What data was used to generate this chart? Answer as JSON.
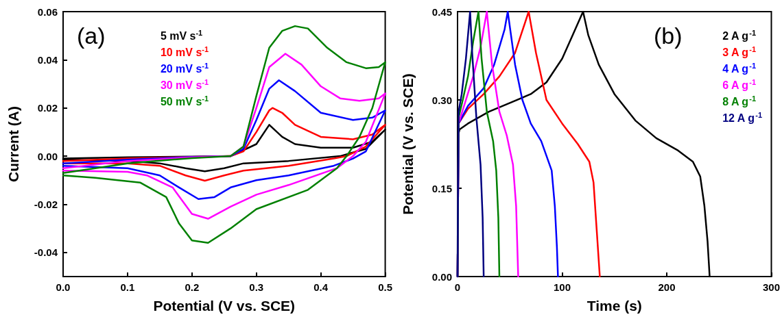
{
  "chart_data": [
    {
      "type": "line",
      "xlabel": "Potential (V vs. SCE)",
      "ylabel": "Current (A)",
      "annotations": [
        "(a)"
      ],
      "xlim": [
        0,
        0.5
      ],
      "xticks": [
        {
          "value": 0,
          "label": "0.0"
        },
        0.1,
        0.2,
        0.3,
        0.4,
        0.5
      ],
      "ylim": [
        -0.05,
        0.06
      ],
      "yticks": [
        {
          "value": -0.04,
          "label": "-0.04"
        },
        {
          "value": -0.02,
          "label": "-0.02"
        },
        {
          "value": 0,
          "label": "0.00"
        },
        {
          "value": 0.02,
          "label": "0.02"
        },
        {
          "value": 0.04,
          "label": "0.04"
        },
        {
          "value": 0.06,
          "label": "0.06"
        }
      ],
      "grid": false,
      "legend": "top left",
      "marker": "none",
      "line_style": "solid",
      "series": [
        {
          "name": "5 mV s$^{-1}$",
          "color": "#000000",
          "x": [
            0,
            0.1,
            0.2,
            0.26,
            0.3,
            0.32,
            0.34,
            0.36,
            0.4,
            0.45,
            0.48,
            0.5,
            0.47,
            0.43,
            0.35,
            0.28,
            0.25,
            0.22,
            0.19,
            0.15,
            0.1,
            0
          ],
          "values": [
            -0.001,
            -0.0005,
            -0.0002,
            0,
            0.005,
            0.013,
            0.008,
            0.005,
            0.0035,
            0.0035,
            0.006,
            0.011,
            0.003,
            0,
            -0.002,
            -0.003,
            -0.005,
            -0.0063,
            -0.005,
            -0.003,
            -0.002,
            -0.0015
          ]
        },
        {
          "name": "10 mV s$^{-1}$",
          "color": "#ff0000",
          "x": [
            0,
            0.1,
            0.2,
            0.26,
            0.28,
            0.3,
            0.32,
            0.325,
            0.34,
            0.36,
            0.4,
            0.45,
            0.48,
            0.5,
            0.47,
            0.44,
            0.42,
            0.35,
            0.28,
            0.25,
            0.22,
            0.19,
            0.15,
            0.1,
            0
          ],
          "values": [
            -0.002,
            -0.001,
            -0.0003,
            0,
            0.002,
            0.01,
            0.019,
            0.02,
            0.018,
            0.013,
            0.008,
            0.007,
            0.009,
            0.013,
            0.004,
            0,
            -0.001,
            -0.004,
            -0.006,
            -0.008,
            -0.0102,
            -0.008,
            -0.004,
            -0.003,
            -0.003
          ]
        },
        {
          "name": "20 mV s$^{-1}$",
          "color": "#0000ff",
          "x": [
            0,
            0.1,
            0.2,
            0.26,
            0.28,
            0.3,
            0.32,
            0.335,
            0.36,
            0.4,
            0.45,
            0.48,
            0.5,
            0.47,
            0.45,
            0.42,
            0.35,
            0.3,
            0.26,
            0.235,
            0.21,
            0.18,
            0.15,
            0.1,
            0
          ],
          "values": [
            -0.003,
            -0.0015,
            -0.0003,
            0,
            0.003,
            0.015,
            0.028,
            0.0315,
            0.027,
            0.018,
            0.015,
            0.016,
            0.019,
            0.002,
            -0.001,
            -0.004,
            -0.008,
            -0.01,
            -0.013,
            -0.017,
            -0.0178,
            -0.013,
            -0.008,
            -0.005,
            -0.004
          ]
        },
        {
          "name": "30 mV s$^{-1}$",
          "color": "#ff00ff",
          "x": [
            0,
            0.1,
            0.2,
            0.26,
            0.28,
            0.3,
            0.32,
            0.345,
            0.37,
            0.4,
            0.43,
            0.46,
            0.49,
            0.5,
            0.47,
            0.45,
            0.425,
            0.35,
            0.3,
            0.26,
            0.225,
            0.2,
            0.17,
            0.13,
            0.1,
            0
          ],
          "values": [
            -0.005,
            -0.002,
            -0.0005,
            0,
            0.004,
            0.02,
            0.037,
            0.0425,
            0.038,
            0.029,
            0.024,
            0.023,
            0.024,
            0.026,
            0.006,
            0,
            -0.005,
            -0.012,
            -0.016,
            -0.021,
            -0.026,
            -0.024,
            -0.013,
            -0.008,
            -0.0065,
            -0.006
          ]
        },
        {
          "name": "50 mV s$^{-1}$",
          "color": "#008000",
          "x": [
            0,
            0.1,
            0.2,
            0.26,
            0.28,
            0.3,
            0.32,
            0.34,
            0.36,
            0.38,
            0.41,
            0.44,
            0.47,
            0.49,
            0.5,
            0.48,
            0.46,
            0.44,
            0.425,
            0.38,
            0.3,
            0.26,
            0.225,
            0.2,
            0.18,
            0.16,
            0.12,
            0.05,
            0
          ],
          "values": [
            -0.007,
            -0.003,
            -0.0008,
            0,
            0.004,
            0.025,
            0.045,
            0.052,
            0.054,
            0.053,
            0.045,
            0.039,
            0.0365,
            0.037,
            0.039,
            0.02,
            0.008,
            0,
            -0.005,
            -0.014,
            -0.022,
            -0.03,
            -0.036,
            -0.035,
            -0.028,
            -0.017,
            -0.011,
            -0.009,
            -0.008
          ]
        }
      ]
    },
    {
      "type": "line",
      "xlabel": "Time (s)",
      "ylabel": "Potential (V vs. SCE)",
      "annotations": [
        "(b)"
      ],
      "xlim": [
        0,
        300
      ],
      "xticks": [
        0,
        100,
        200,
        300
      ],
      "ylim": [
        0,
        0.45
      ],
      "yticks": [
        {
          "value": 0,
          "label": "0.00"
        },
        0.15,
        {
          "value": 0.3,
          "label": "0.30"
        },
        0.45
      ],
      "grid": false,
      "legend": "top right",
      "marker": "none",
      "line_style": "solid",
      "series": [
        {
          "name": "2 A g$^{-1}$",
          "color": "#000000",
          "x": [
            0,
            0.5,
            2,
            10,
            30,
            50,
            70,
            85,
            100,
            110,
            120,
            125,
            135,
            150,
            170,
            190,
            210,
            225,
            232,
            236,
            239,
            241
          ],
          "values": [
            0,
            0.24,
            0.25,
            0.26,
            0.28,
            0.295,
            0.31,
            0.33,
            0.37,
            0.41,
            0.45,
            0.41,
            0.36,
            0.31,
            0.265,
            0.235,
            0.215,
            0.195,
            0.17,
            0.12,
            0.06,
            0
          ]
        },
        {
          "name": "3 A g$^{-1}$",
          "color": "#ff0000",
          "x": [
            0,
            1,
            10,
            25,
            40,
            55,
            68,
            75,
            85,
            100,
            115,
            126,
            130,
            133,
            136
          ],
          "values": [
            0,
            0.26,
            0.285,
            0.31,
            0.34,
            0.38,
            0.45,
            0.38,
            0.3,
            0.26,
            0.225,
            0.195,
            0.16,
            0.08,
            0
          ]
        },
        {
          "name": "4 A g$^{-1}$",
          "color": "#0000ff",
          "x": [
            0,
            1,
            10,
            25,
            35,
            45,
            48,
            55,
            62,
            70,
            80,
            90,
            93,
            95,
            96
          ],
          "values": [
            0,
            0.26,
            0.29,
            0.32,
            0.36,
            0.42,
            0.45,
            0.36,
            0.3,
            0.26,
            0.23,
            0.18,
            0.12,
            0.05,
            0
          ]
        },
        {
          "name": "6 A g$^{-1}$",
          "color": "#ff00ff",
          "x": [
            0,
            1,
            8,
            15,
            22,
            28,
            33,
            40,
            47,
            53,
            56,
            58
          ],
          "values": [
            0,
            0.26,
            0.3,
            0.34,
            0.39,
            0.45,
            0.36,
            0.28,
            0.24,
            0.19,
            0.12,
            0
          ]
        },
        {
          "name": "8 A g$^{-1}$",
          "color": "#008000",
          "x": [
            0,
            1,
            5,
            10,
            15,
            20,
            23,
            28,
            34,
            37,
            39,
            40
          ],
          "values": [
            0,
            0.27,
            0.3,
            0.34,
            0.4,
            0.45,
            0.37,
            0.28,
            0.23,
            0.18,
            0.1,
            0
          ]
        },
        {
          "name": "12 A g$^{-1}$",
          "color": "#000080",
          "x": [
            0,
            1,
            4,
            8,
            12,
            14,
            18,
            22,
            24,
            25
          ],
          "values": [
            0,
            0.28,
            0.31,
            0.37,
            0.45,
            0.38,
            0.27,
            0.19,
            0.1,
            0
          ]
        }
      ]
    }
  ]
}
